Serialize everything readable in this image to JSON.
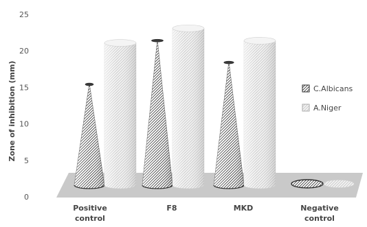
{
  "chart_data": {
    "type": "bar",
    "shape": "3d-cone-and-cylinder",
    "categories": [
      [
        "Positive",
        "control"
      ],
      [
        "F8"
      ],
      [
        "MKD"
      ],
      [
        "Negative",
        "control"
      ]
    ],
    "series": [
      {
        "name": "C.Albicans",
        "shape": "cone",
        "values": [
          14,
          20,
          17,
          0
        ]
      },
      {
        "name": "A.Niger",
        "shape": "cylinder",
        "values": [
          19.5,
          21.5,
          19.8,
          0
        ]
      }
    ],
    "title": "",
    "xlabel": "",
    "ylabel": "Zone of inhibition (mm)",
    "ylim": [
      0,
      25
    ],
    "yticks": [
      0,
      5,
      10,
      15,
      20,
      25
    ],
    "grid": false,
    "legend": "right",
    "colors": {
      "cone": "#3a3a3a",
      "cylinder": "#bdbdbd",
      "floor": "#c9c9c9"
    }
  }
}
